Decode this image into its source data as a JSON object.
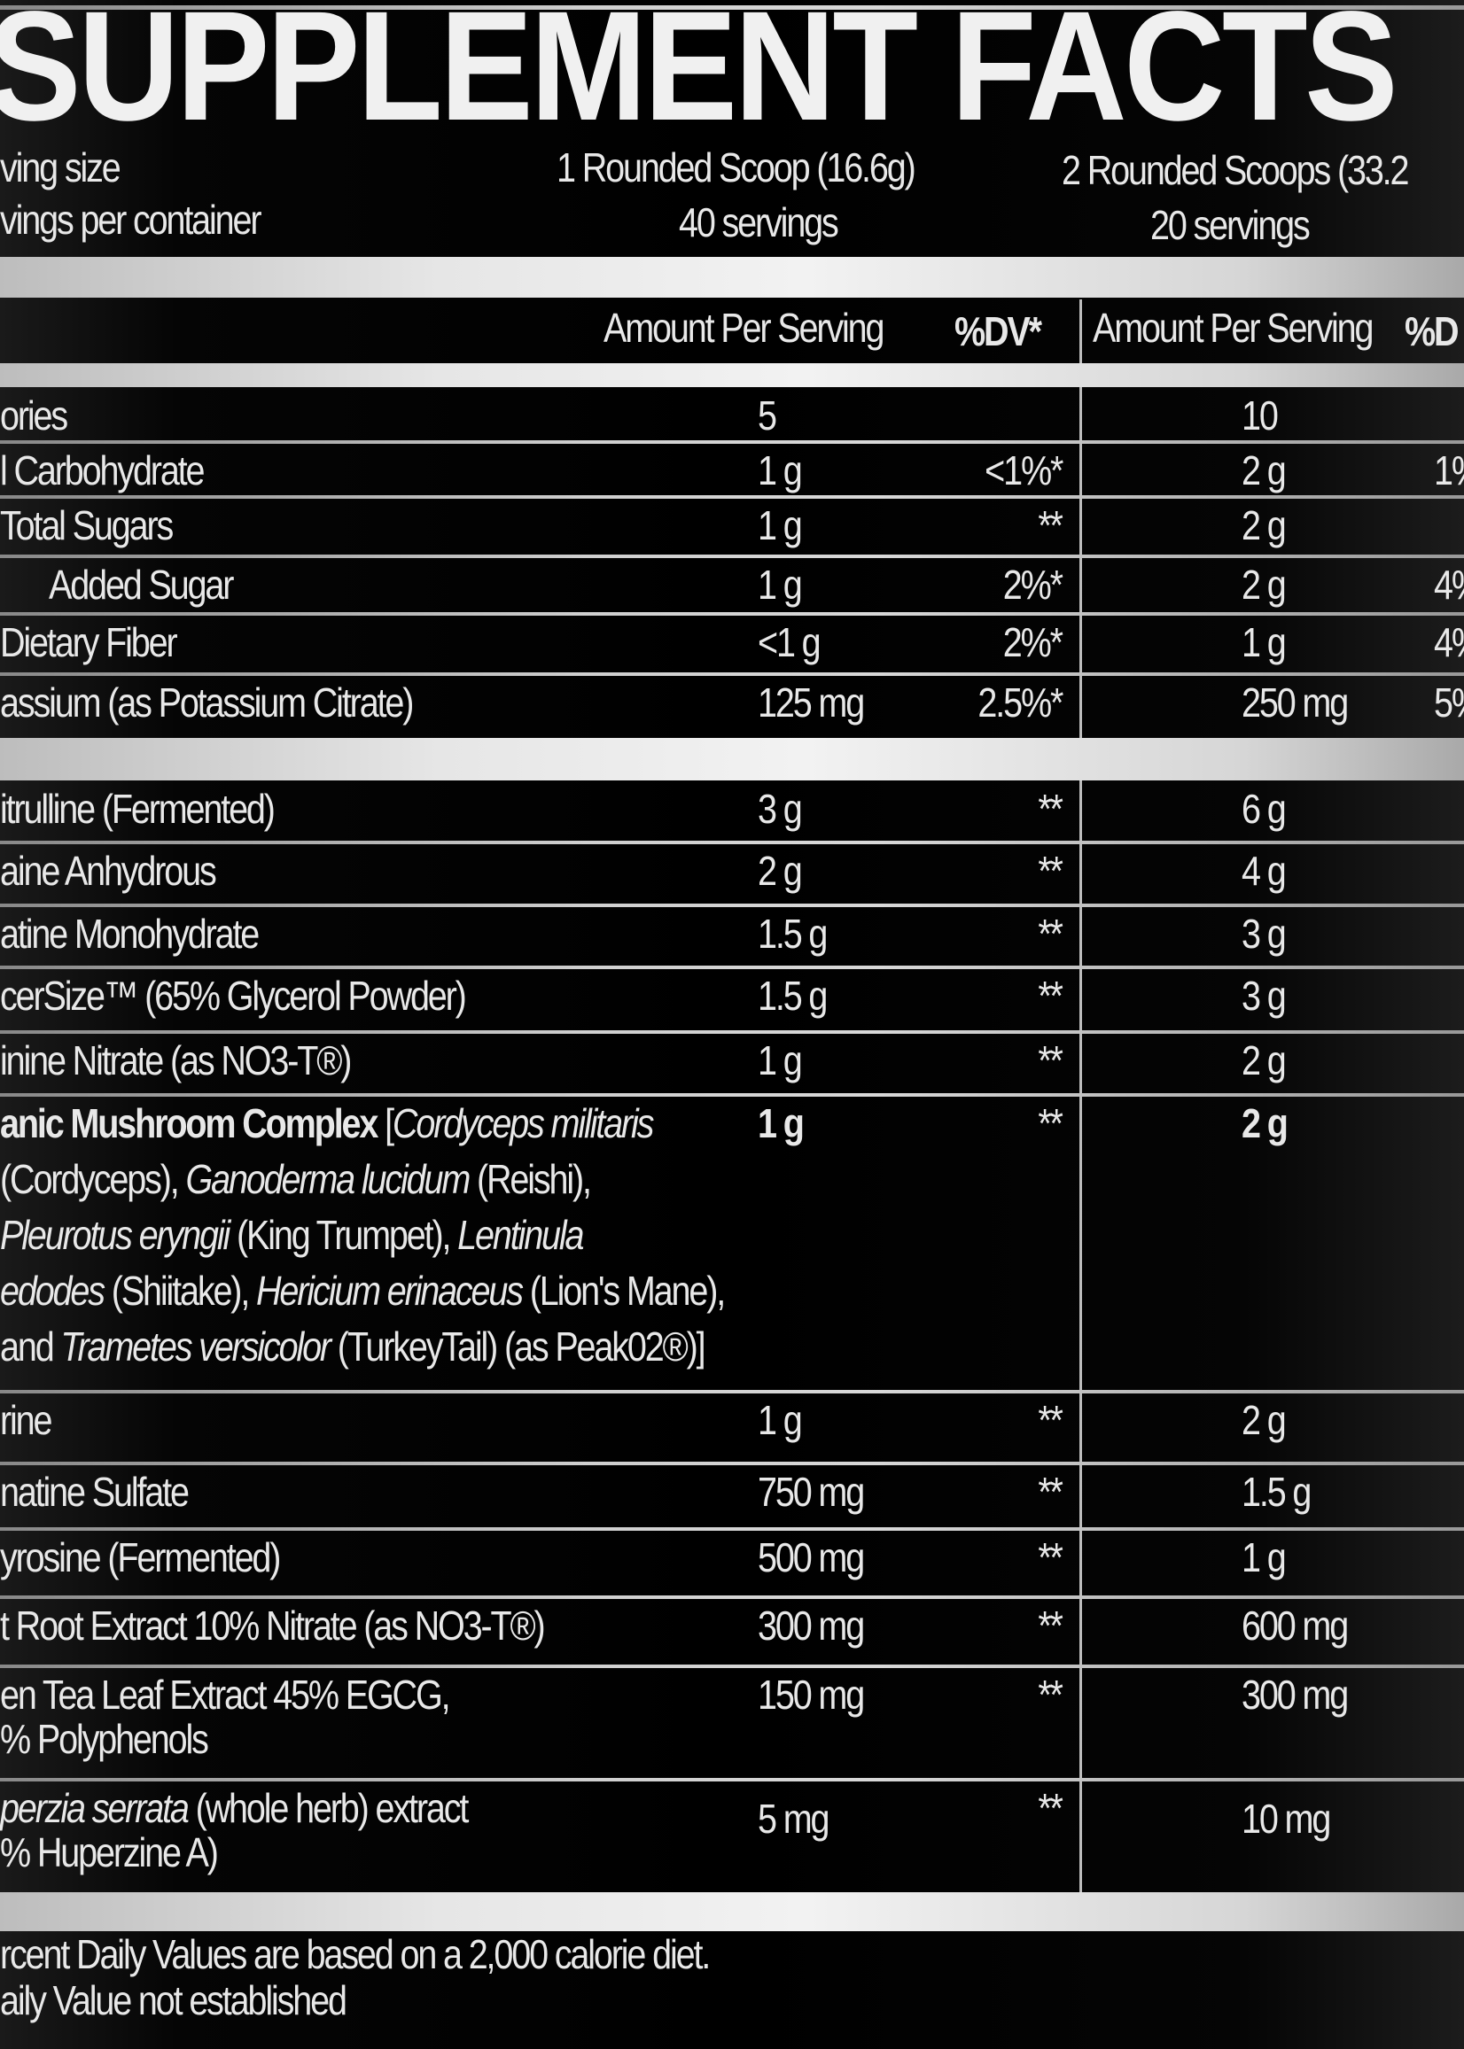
{
  "title": "SUPPLEMENT FACTS",
  "serving": {
    "label": "ving size",
    "col1": "1 Rounded Scoop (16.6g)",
    "col2": "2 Rounded Scoops (33.2"
  },
  "servings": {
    "label": "vings per container",
    "col1": "40 servings",
    "col2": "20 servings"
  },
  "header": {
    "amount1": "Amount Per Serving",
    "dv1": "%DV*",
    "amount2": "Amount Per Serving",
    "dv2": "%D"
  },
  "rows": [
    {
      "name": "ories",
      "a1": "5",
      "d1": "",
      "a2": "10",
      "d2": ""
    },
    {
      "name": "l Carbohydrate",
      "a1": "1 g",
      "d1": "<1%*",
      "a2": "2 g",
      "d2": "1%"
    },
    {
      "name": "Total Sugars",
      "a1": "1 g",
      "d1": "**",
      "a2": "2 g",
      "d2": ""
    },
    {
      "name": "Added Sugar",
      "a1": "1 g",
      "d1": "2%*",
      "a2": "2 g",
      "d2": "4%"
    },
    {
      "name": "Dietary Fiber",
      "a1": "<1 g",
      "d1": "2%*",
      "a2": "1 g",
      "d2": "4%"
    },
    {
      "name": "assium (as Potassium Citrate)",
      "a1": "125 mg",
      "d1": "2.5%*",
      "a2": "250 mg",
      "d2": "5%"
    },
    {
      "name": "itrulline (Fermented)",
      "a1": "3 g",
      "d1": "**",
      "a2": "6 g",
      "d2": ""
    },
    {
      "name": "aine Anhydrous",
      "a1": "2 g",
      "d1": "**",
      "a2": "4 g",
      "d2": ""
    },
    {
      "name": "atine Monohydrate",
      "a1": "1.5 g",
      "d1": "**",
      "a2": "3 g",
      "d2": ""
    },
    {
      "name": "cerSize™ (65% Glycerol Powder)",
      "a1": "1.5 g",
      "d1": "**",
      "a2": "3 g",
      "d2": ""
    },
    {
      "name": "inine Nitrate (as NO3-T®)",
      "a1": "1 g",
      "d1": "**",
      "a2": "2 g",
      "d2": ""
    },
    {
      "name": "",
      "a1": "1 g",
      "d1": "**",
      "a2": "2 g",
      "d2": ""
    },
    {
      "name": "rine",
      "a1": "1 g",
      "d1": "**",
      "a2": "2 g",
      "d2": ""
    },
    {
      "name": "natine Sulfate",
      "a1": "750 mg",
      "d1": "**",
      "a2": "1.5 g",
      "d2": ""
    },
    {
      "name": "yrosine (Fermented)",
      "a1": "500 mg",
      "d1": "**",
      "a2": "1 g",
      "d2": ""
    },
    {
      "name": "t Root Extract 10% Nitrate (as NO3-T®)",
      "a1": "300 mg",
      "d1": "**",
      "a2": "600 mg",
      "d2": ""
    },
    {
      "name": "en Tea Leaf Extract 45% EGCG,",
      "name2": "% Polyphenols",
      "a1": "150 mg",
      "d1": "**",
      "a2": "300 mg",
      "d2": ""
    },
    {
      "name": "perzia serrata",
      "name_rest": " (whole herb) extract",
      "name2": "% Huperzine A)",
      "a1": "5 mg",
      "d1": "**",
      "a2": "10 mg",
      "d2": ""
    }
  ],
  "mushroom_lines": [
    [
      {
        "t": "anic Mushroom Complex ",
        "s": "b"
      },
      {
        "t": "[",
        "s": ""
      },
      {
        "t": "Cordyceps militaris",
        "s": "i"
      }
    ],
    [
      {
        "t": "(Cordyceps), ",
        "s": ""
      },
      {
        "t": "Ganoderma lucidum",
        "s": "i"
      },
      {
        "t": " (Reishi),",
        "s": ""
      }
    ],
    [
      {
        "t": "Pleurotus eryngii",
        "s": "i"
      },
      {
        "t": " (King Trumpet), ",
        "s": ""
      },
      {
        "t": "Lentinula",
        "s": "i"
      }
    ],
    [
      {
        "t": "edodes",
        "s": "i"
      },
      {
        "t": " (Shiitake), ",
        "s": ""
      },
      {
        "t": "Hericium erinaceus",
        "s": "i"
      },
      {
        "t": " (Lion's Mane),",
        "s": ""
      }
    ],
    [
      {
        "t": "and ",
        "s": ""
      },
      {
        "t": "Trametes versicolor",
        "s": "i"
      },
      {
        "t": " (TurkeyTail) (as Peak02®)]",
        "s": ""
      }
    ]
  ],
  "footer": {
    "line1": "rcent Daily Values are based on a 2,000 calorie diet.",
    "line2": "aily Value not established"
  }
}
